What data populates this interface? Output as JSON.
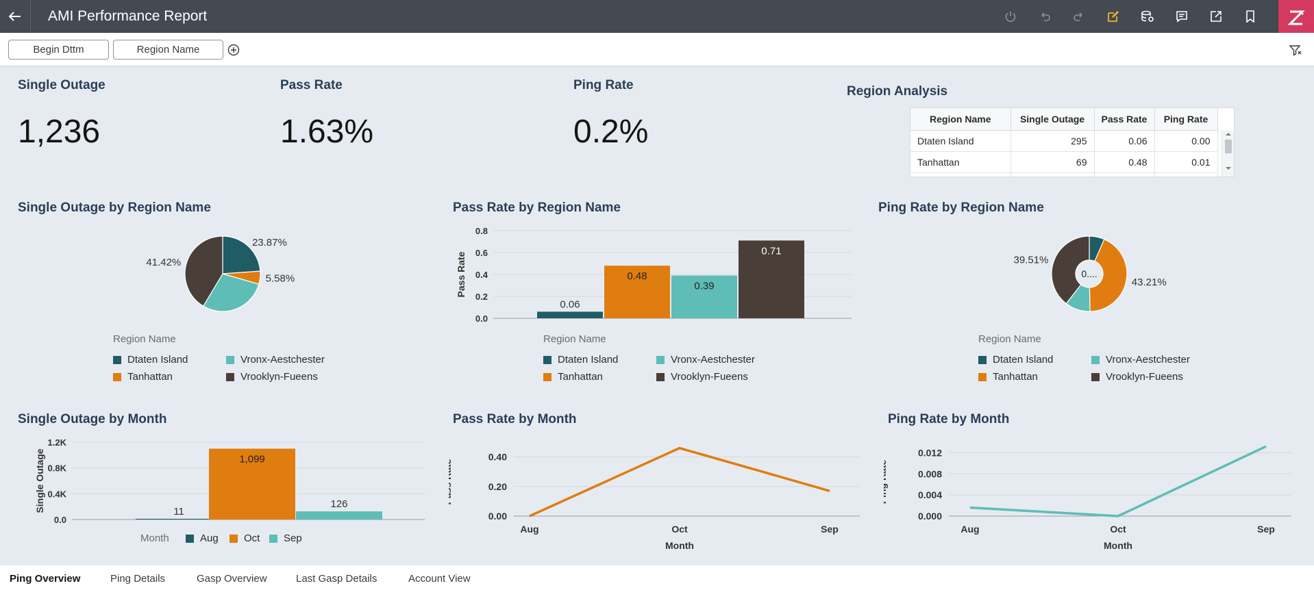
{
  "header": {
    "title": "AMI Performance Report"
  },
  "filters": [
    {
      "label": "Begin Dttm"
    },
    {
      "label": "Region Name"
    }
  ],
  "kpis": [
    {
      "title": "Single Outage",
      "value": "1,236"
    },
    {
      "title": "Pass Rate",
      "value": "1.63%"
    },
    {
      "title": "Ping Rate",
      "value": "0.2%"
    }
  ],
  "region_table": {
    "title": "Region Analysis",
    "columns": [
      "Region Name",
      "Single Outage",
      "Pass Rate",
      "Ping Rate"
    ],
    "rows": [
      [
        "Dtaten Island",
        "295",
        "0.06",
        "0.00"
      ],
      [
        "Tanhattan",
        "69",
        "0.48",
        "0.01"
      ]
    ]
  },
  "legend": {
    "title": "Region Name",
    "items": [
      {
        "label": "Dtaten Island",
        "color": "#1f5c63"
      },
      {
        "label": "Vronx-Aestchester",
        "color": "#5ebdb6"
      },
      {
        "label": "Tanhattan",
        "color": "#e07d10"
      },
      {
        "label": "Vrooklyn-Fueens",
        "color": "#4a3e38"
      }
    ]
  },
  "month_legend": {
    "title": "Month",
    "items": [
      {
        "label": "Aug",
        "color": "#1f5c63"
      },
      {
        "label": "Oct",
        "color": "#e07d10"
      },
      {
        "label": "Sep",
        "color": "#5ebdb6"
      }
    ]
  },
  "tabs": [
    {
      "label": "Ping Overview",
      "active": true
    },
    {
      "label": "Ping Details"
    },
    {
      "label": "Gasp Overview"
    },
    {
      "label": "Last Gasp Details"
    },
    {
      "label": "Account View"
    }
  ],
  "chart_data": [
    {
      "type": "pie",
      "title": "Single Outage by Region Name",
      "categories": [
        "Dtaten Island",
        "Tanhattan",
        "Vronx-Aestchester",
        "Vrooklyn-Fueens"
      ],
      "values": [
        23.87,
        5.58,
        29.13,
        41.42
      ],
      "labels": [
        "23.87%",
        "5.58%",
        "",
        "41.42%"
      ],
      "legend": "bottom"
    },
    {
      "type": "bar",
      "title": "Pass Rate by Region Name",
      "categories": [
        "Dtaten Island",
        "Tanhattan",
        "Vronx-Aestchester",
        "Vrooklyn-Fueens"
      ],
      "values": [
        0.06,
        0.48,
        0.39,
        0.71
      ],
      "ylabel": "Pass Rate",
      "ylim": [
        0,
        0.8
      ],
      "yticks": [
        "0.0",
        "0.2",
        "0.4",
        "0.6",
        "0.8"
      ],
      "grid": true,
      "legend": "bottom"
    },
    {
      "type": "pie",
      "donut": true,
      "title": "Ping Rate by Region Name",
      "categories": [
        "Dtaten Island",
        "Tanhattan",
        "Vronx-Aestchester",
        "Vrooklyn-Fueens"
      ],
      "values": [
        6.5,
        43.21,
        10.78,
        39.51
      ],
      "labels": [
        "",
        "43.21%",
        "",
        "39.51%"
      ],
      "center_label": "0....",
      "legend": "bottom"
    },
    {
      "type": "bar",
      "title": "Single Outage by Month",
      "categories": [
        "Aug",
        "Oct",
        "Sep"
      ],
      "values": [
        11,
        1099,
        126
      ],
      "labels": [
        "11",
        "1,099",
        "126"
      ],
      "ylabel": "Single Outage",
      "ylim": [
        0,
        1200
      ],
      "yticks": [
        "0.0",
        "0.4K",
        "0.8K",
        "1.2K"
      ],
      "grid": true,
      "legend": "bottom"
    },
    {
      "type": "line",
      "title": "Pass Rate by Month",
      "x": [
        "Aug",
        "Oct",
        "Sep"
      ],
      "values": [
        0.0,
        0.46,
        0.17
      ],
      "xlabel": "Month",
      "ylabel": "Pass Rate",
      "ylim": [
        0,
        0.5
      ],
      "yticks": [
        "0.00",
        "0.20",
        "0.40"
      ],
      "color": "#e07d10",
      "grid": true
    },
    {
      "type": "line",
      "title": "Ping Rate by Month",
      "x": [
        "Aug",
        "Oct",
        "Sep"
      ],
      "values": [
        0.0016,
        0.0,
        0.0132
      ],
      "xlabel": "Month",
      "ylabel": "Ping Rate",
      "ylim": [
        0,
        0.014
      ],
      "yticks": [
        "0.000",
        "0.004",
        "0.008",
        "0.012"
      ],
      "color": "#5ebdb6",
      "grid": true
    }
  ]
}
